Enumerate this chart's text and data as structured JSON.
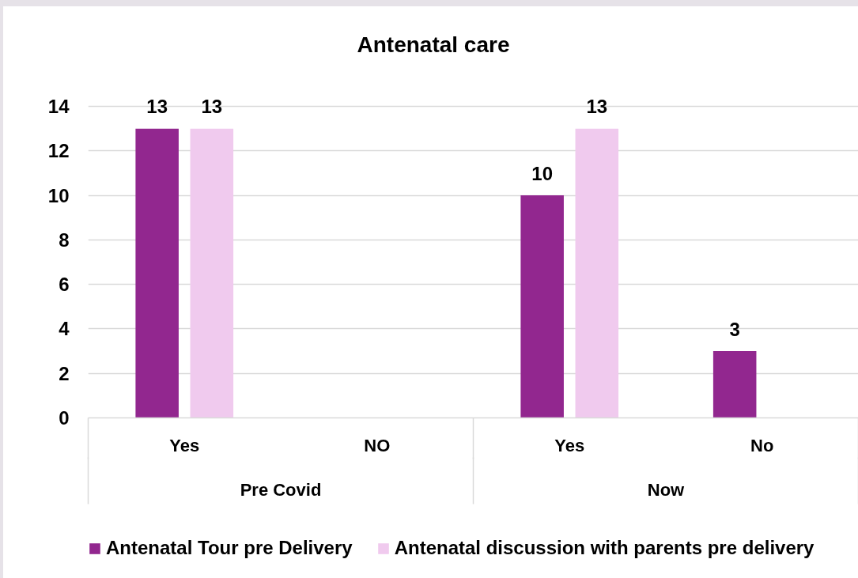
{
  "chart_data": {
    "type": "bar",
    "title": "Antenatal care",
    "categories": [
      "Yes",
      "NO",
      "Yes",
      "No"
    ],
    "series": [
      {
        "name": "Antenatal Tour pre Delivery",
        "color": "#92278f",
        "values": [
          13,
          null,
          10,
          3
        ]
      },
      {
        "name": "Antenatal discussion with parents pre delivery",
        "color": "#f0caee",
        "values": [
          13,
          null,
          13,
          null
        ]
      }
    ],
    "ylim": [
      0,
      14
    ],
    "yticks": [
      0,
      2,
      4,
      6,
      8,
      10,
      12,
      14
    ],
    "grid": "y",
    "legend": "bottom",
    "data_labels": true,
    "annotations": [
      "Pre Covid",
      "Now"
    ]
  }
}
